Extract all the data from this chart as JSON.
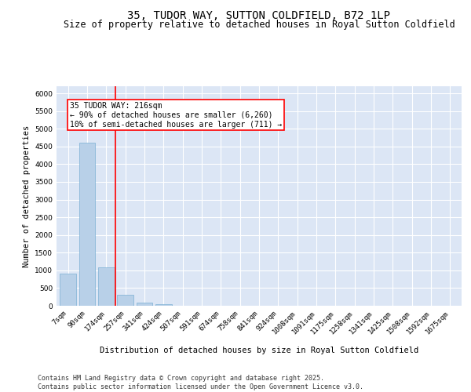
{
  "title": "35, TUDOR WAY, SUTTON COLDFIELD, B72 1LP",
  "subtitle": "Size of property relative to detached houses in Royal Sutton Coldfield",
  "xlabel": "Distribution of detached houses by size in Royal Sutton Coldfield",
  "ylabel": "Number of detached properties",
  "categories": [
    "7sqm",
    "90sqm",
    "174sqm",
    "257sqm",
    "341sqm",
    "424sqm",
    "507sqm",
    "591sqm",
    "674sqm",
    "758sqm",
    "841sqm",
    "924sqm",
    "1008sqm",
    "1091sqm",
    "1175sqm",
    "1258sqm",
    "1341sqm",
    "1425sqm",
    "1508sqm",
    "1592sqm",
    "1675sqm"
  ],
  "values": [
    900,
    4600,
    1080,
    300,
    90,
    55,
    0,
    0,
    0,
    0,
    0,
    0,
    0,
    0,
    0,
    0,
    0,
    0,
    0,
    0,
    0
  ],
  "bar_color": "#b8d0e8",
  "bar_edge_color": "#7aafd4",
  "vline_x": 2.5,
  "vline_color": "red",
  "annotation_text": "35 TUDOR WAY: 216sqm\n← 90% of detached houses are smaller (6,260)\n10% of semi-detached houses are larger (711) →",
  "annotation_box_color": "white",
  "annotation_box_edge_color": "red",
  "ylim": [
    0,
    6200
  ],
  "yticks": [
    0,
    500,
    1000,
    1500,
    2000,
    2500,
    3000,
    3500,
    4000,
    4500,
    5000,
    5500,
    6000
  ],
  "bg_color": "#dce6f5",
  "grid_color": "white",
  "footer": "Contains HM Land Registry data © Crown copyright and database right 2025.\nContains public sector information licensed under the Open Government Licence v3.0.",
  "title_fontsize": 10,
  "subtitle_fontsize": 8.5,
  "xlabel_fontsize": 7.5,
  "ylabel_fontsize": 7.5,
  "tick_fontsize": 6.5,
  "annotation_fontsize": 7,
  "footer_fontsize": 6
}
